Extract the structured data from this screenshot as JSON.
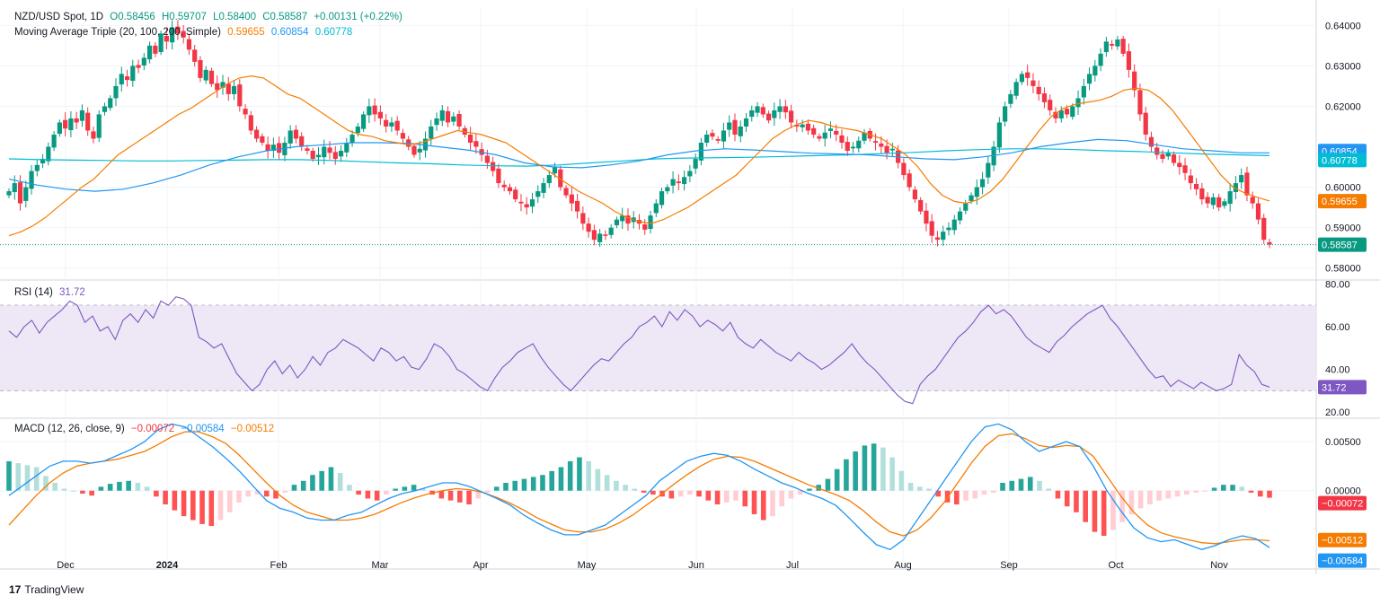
{
  "legend": {
    "symbol": "NZD/USD Spot, 1D",
    "open": "O0.58456",
    "high": "H0.59707",
    "low": "L0.58400",
    "close": "C0.58587",
    "change": "+0.00131 (+0.22%)",
    "ma_label": "Moving Average Triple (20, 100, 200, Simple)",
    "ma20": "0.59655",
    "ma100": "0.60854",
    "ma200": "0.60778",
    "rsi_label": "RSI (14)",
    "rsi_value": "31.72",
    "macd_label": "MACD (12, 26, close, 9)",
    "macd_hist": "−0.00072",
    "macd_line": "−0.00584",
    "macd_signal": "−0.00512"
  },
  "brand": {
    "logo": "17",
    "name": "TradingView"
  },
  "colors": {
    "up": "#089981",
    "down": "#f23645",
    "ma20": "#f57c00",
    "ma100": "#2196f3",
    "ma200": "#00bcd4",
    "rsi": "#7e57c2",
    "macd": "#2196f3",
    "signal": "#f57c00",
    "hist_up_strong": "#26a69a",
    "hist_up_weak": "#b2dfdb",
    "hist_down_strong": "#ff5252",
    "hist_down_weak": "#ffcdd2",
    "rsi_band": "#ede7f6"
  },
  "chart_data": [
    {
      "type": "candlestick",
      "title": "NZD/USD Spot, 1D",
      "ylim": [
        0.5775,
        0.6445
      ],
      "y_ticks": [
        "0.64000",
        "0.63000",
        "0.62000",
        "0.60000",
        "0.59000",
        "0.58000"
      ],
      "x_ticks": [
        "Dec",
        "2024",
        "Feb",
        "Mar",
        "Apr",
        "May",
        "Jun",
        "Jul",
        "Aug",
        "Sep",
        "Oct",
        "Nov"
      ],
      "last_close_label": "0.58587",
      "close_path": [
        0.599,
        0.601,
        0.596,
        0.6,
        0.604,
        0.6055,
        0.607,
        0.61,
        0.613,
        0.616,
        0.6145,
        0.617,
        0.616,
        0.619,
        0.614,
        0.612,
        0.618,
        0.62,
        0.622,
        0.625,
        0.628,
        0.6265,
        0.63,
        0.6295,
        0.632,
        0.635,
        0.633,
        0.638,
        0.636,
        0.6395,
        0.638,
        0.637,
        0.634,
        0.631,
        0.627,
        0.629,
        0.6255,
        0.624,
        0.626,
        0.623,
        0.625,
        0.62,
        0.618,
        0.614,
        0.612,
        0.611,
        0.609,
        0.6105,
        0.6085,
        0.611,
        0.614,
        0.612,
        0.61,
        0.609,
        0.607,
        0.608,
        0.61,
        0.6085,
        0.607,
        0.609,
        0.611,
        0.613,
        0.615,
        0.618,
        0.62,
        0.618,
        0.617,
        0.615,
        0.616,
        0.614,
        0.612,
        0.61,
        0.608,
        0.6095,
        0.612,
        0.615,
        0.617,
        0.619,
        0.616,
        0.6175,
        0.615,
        0.613,
        0.611,
        0.61,
        0.608,
        0.606,
        0.604,
        0.601,
        0.6,
        0.599,
        0.597,
        0.596,
        0.595,
        0.597,
        0.599,
        0.601,
        0.603,
        0.605,
        0.6,
        0.598,
        0.596,
        0.594,
        0.591,
        0.589,
        0.587,
        0.5885,
        0.588,
        0.59,
        0.592,
        0.593,
        0.591,
        0.5925,
        0.591,
        0.5895,
        0.593,
        0.596,
        0.599,
        0.6,
        0.602,
        0.601,
        0.6025,
        0.604,
        0.607,
        0.611,
        0.613,
        0.6125,
        0.6115,
        0.614,
        0.616,
        0.613,
        0.615,
        0.617,
        0.619,
        0.62,
        0.618,
        0.6165,
        0.619,
        0.62,
        0.6185,
        0.616,
        0.615,
        0.6155,
        0.614,
        0.613,
        0.612,
        0.6135,
        0.6145,
        0.613,
        0.611,
        0.609,
        0.61,
        0.6115,
        0.6135,
        0.612,
        0.611,
        0.61,
        0.6085,
        0.6095,
        0.606,
        0.603,
        0.6,
        0.597,
        0.594,
        0.591,
        0.588,
        0.587,
        0.589,
        0.59,
        0.592,
        0.594,
        0.596,
        0.598,
        0.6,
        0.602,
        0.606,
        0.61,
        0.616,
        0.62,
        0.623,
        0.626,
        0.628,
        0.627,
        0.625,
        0.623,
        0.621,
        0.619,
        0.617,
        0.619,
        0.618,
        0.62,
        0.622,
        0.625,
        0.628,
        0.63,
        0.633,
        0.636,
        0.635,
        0.6365,
        0.633,
        0.629,
        0.624,
        0.618,
        0.613,
        0.61,
        0.608,
        0.607,
        0.6085,
        0.606,
        0.605,
        0.6035,
        0.601,
        0.5995,
        0.597,
        0.596,
        0.5975,
        0.595,
        0.5965,
        0.599,
        0.601,
        0.603,
        0.598,
        0.596,
        0.592,
        0.587,
        0.5858
      ],
      "ma20_path": [
        0.588,
        0.589,
        0.5905,
        0.5925,
        0.595,
        0.5975,
        0.6,
        0.602,
        0.605,
        0.608,
        0.61,
        0.612,
        0.614,
        0.616,
        0.618,
        0.6195,
        0.6215,
        0.6235,
        0.6255,
        0.627,
        0.6275,
        0.627,
        0.625,
        0.623,
        0.622,
        0.62,
        0.618,
        0.616,
        0.614,
        0.613,
        0.6125,
        0.6115,
        0.611,
        0.6105,
        0.611,
        0.612,
        0.613,
        0.614,
        0.6135,
        0.613,
        0.612,
        0.611,
        0.609,
        0.607,
        0.605,
        0.603,
        0.601,
        0.599,
        0.5975,
        0.596,
        0.594,
        0.5925,
        0.5915,
        0.591,
        0.592,
        0.5935,
        0.595,
        0.597,
        0.599,
        0.601,
        0.603,
        0.606,
        0.609,
        0.612,
        0.614,
        0.6155,
        0.6165,
        0.616,
        0.615,
        0.6145,
        0.614,
        0.613,
        0.612,
        0.61,
        0.608,
        0.605,
        0.601,
        0.598,
        0.5965,
        0.596,
        0.597,
        0.599,
        0.602,
        0.606,
        0.61,
        0.614,
        0.6175,
        0.6195,
        0.6205,
        0.621,
        0.6215,
        0.6225,
        0.624,
        0.6245,
        0.624,
        0.622,
        0.619,
        0.615,
        0.611,
        0.607,
        0.603,
        0.6,
        0.5985,
        0.5975,
        0.5966
      ],
      "ma100_path": [
        0.602,
        0.6005,
        0.5995,
        0.599,
        0.5995,
        0.601,
        0.603,
        0.6055,
        0.6075,
        0.609,
        0.61,
        0.6105,
        0.611,
        0.611,
        0.6108,
        0.61,
        0.6092,
        0.608,
        0.606,
        0.605,
        0.6048,
        0.6055,
        0.6065,
        0.608,
        0.609,
        0.6095,
        0.6092,
        0.6088,
        0.6084,
        0.6082,
        0.608,
        0.6075,
        0.607,
        0.6068,
        0.6075,
        0.6085,
        0.61,
        0.611,
        0.6118,
        0.6115,
        0.6105,
        0.6095,
        0.609,
        0.6085,
        0.6085
      ],
      "ma200_path": [
        0.607,
        0.6068,
        0.6067,
        0.6066,
        0.6065,
        0.6065,
        0.6066,
        0.6067,
        0.6068,
        0.6068,
        0.6066,
        0.6063,
        0.606,
        0.6058,
        0.6055,
        0.6053,
        0.6052,
        0.6055,
        0.606,
        0.6065,
        0.607,
        0.6072,
        0.6073,
        0.6074,
        0.6076,
        0.6078,
        0.608,
        0.6083,
        0.6086,
        0.609,
        0.6093,
        0.6095,
        0.6095,
        0.6093,
        0.609,
        0.6088,
        0.6085,
        0.6082,
        0.608,
        0.6078
      ]
    },
    {
      "type": "line",
      "title": "RSI (14)",
      "ylim": [
        18,
        81
      ],
      "y_ticks": [
        "80.00",
        "60.00",
        "40.00",
        "20.00"
      ],
      "bands": [
        70,
        50,
        30
      ],
      "last_value_label": "31.72",
      "values": [
        58,
        55,
        60,
        63,
        57,
        62,
        65,
        68,
        72,
        70,
        62,
        65,
        58,
        60,
        54,
        63,
        66,
        62,
        68,
        64,
        72,
        70,
        74,
        73,
        70,
        55,
        53,
        50,
        52,
        45,
        38,
        34,
        30,
        33,
        40,
        44,
        38,
        42,
        36,
        40,
        46,
        42,
        48,
        50,
        54,
        52,
        50,
        47,
        44,
        50,
        48,
        44,
        46,
        41,
        40,
        45,
        52,
        50,
        46,
        40,
        38,
        35,
        32,
        30,
        36,
        41,
        44,
        48,
        50,
        52,
        46,
        41,
        37,
        33,
        30,
        34,
        38,
        42,
        45,
        44,
        48,
        52,
        55,
        60,
        62,
        65,
        60,
        67,
        63,
        68,
        65,
        60,
        63,
        61,
        58,
        62,
        55,
        52,
        50,
        54,
        51,
        48,
        46,
        44,
        48,
        45,
        43,
        40,
        42,
        45,
        48,
        52,
        47,
        43,
        40,
        36,
        32,
        28,
        25,
        24,
        33,
        37,
        40,
        45,
        50,
        55,
        58,
        62,
        67,
        70,
        66,
        68,
        65,
        60,
        55,
        52,
        50,
        48,
        53,
        56,
        60,
        63,
        66,
        68,
        70,
        64,
        60,
        55,
        50,
        45,
        40,
        36,
        37,
        32,
        35,
        33,
        31,
        34,
        32,
        30,
        31,
        33,
        47,
        42,
        39,
        33,
        31.72
      ]
    },
    {
      "type": "bar+line",
      "title": "MACD (12, 26, close, 9)",
      "ylim": [
        -0.0078,
        0.0072
      ],
      "y_ticks": [
        "0.00500",
        "0.00000"
      ],
      "last_labels": {
        "hist": "−0.00072",
        "signal": "−0.00512",
        "macd": "−0.00584"
      },
      "macd": [
        -0.0005,
        0.0005,
        0.0015,
        0.0025,
        0.003,
        0.003,
        0.0028,
        0.003,
        0.0036,
        0.0042,
        0.005,
        0.0062,
        0.0068,
        0.0065,
        0.0055,
        0.0045,
        0.0033,
        0.002,
        0.0005,
        -0.001,
        -0.0018,
        -0.0022,
        -0.0028,
        -0.003,
        -0.003,
        -0.0025,
        -0.0022,
        -0.0015,
        -0.0008,
        -0.0003,
        0.0,
        0.0004,
        0.0008,
        0.0008,
        0.0004,
        -0.0002,
        -0.0008,
        -0.0015,
        -0.0025,
        -0.0033,
        -0.004,
        -0.0045,
        -0.0045,
        -0.004,
        -0.0035,
        -0.0025,
        -0.0015,
        -0.0005,
        0.001,
        0.002,
        0.003,
        0.0035,
        0.0038,
        0.0036,
        0.003,
        0.0022,
        0.0015,
        0.0008,
        0.0003,
        -0.0003,
        -0.0008,
        -0.0015,
        -0.0028,
        -0.0042,
        -0.0055,
        -0.006,
        -0.005,
        -0.003,
        -0.001,
        0.001,
        0.003,
        0.005,
        0.0065,
        0.0068,
        0.0062,
        0.005,
        0.004,
        0.0045,
        0.005,
        0.0045,
        0.0025,
        0.0,
        -0.002,
        -0.0038,
        -0.0048,
        -0.0052,
        -0.005,
        -0.0055,
        -0.006,
        -0.0056,
        -0.005,
        -0.0046,
        -0.0049,
        -0.0058
      ],
      "signal": [
        -0.0035,
        -0.002,
        -0.0005,
        0.0008,
        0.0018,
        0.0025,
        0.0028,
        0.003,
        0.0032,
        0.0036,
        0.004,
        0.0047,
        0.0055,
        0.006,
        0.006,
        0.0055,
        0.0048,
        0.0036,
        0.0022,
        0.0008,
        -0.0005,
        -0.0015,
        -0.0022,
        -0.0026,
        -0.003,
        -0.003,
        -0.0028,
        -0.0024,
        -0.0018,
        -0.0012,
        -0.0007,
        -0.0003,
        0.0,
        0.0002,
        0.0001,
        -0.0002,
        -0.0007,
        -0.0013,
        -0.002,
        -0.0028,
        -0.0034,
        -0.004,
        -0.0042,
        -0.0042,
        -0.0039,
        -0.0033,
        -0.0025,
        -0.0015,
        -0.0005,
        0.0006,
        0.0016,
        0.0025,
        0.0032,
        0.0035,
        0.0034,
        0.003,
        0.0024,
        0.0018,
        0.0012,
        0.0006,
        0.0001,
        -0.0004,
        -0.001,
        -0.002,
        -0.0032,
        -0.0042,
        -0.0046,
        -0.004,
        -0.0028,
        -0.0012,
        0.0008,
        0.0028,
        0.0045,
        0.0056,
        0.0058,
        0.0053,
        0.0046,
        0.0044,
        0.0046,
        0.0045,
        0.0035,
        0.0015,
        -0.0005,
        -0.0022,
        -0.0035,
        -0.0043,
        -0.0047,
        -0.005,
        -0.0053,
        -0.0054,
        -0.0052,
        -0.005,
        -0.005,
        -0.0051
      ],
      "hist": [
        0.003,
        0.0028,
        0.0026,
        0.0024,
        0.0015,
        0.0008,
        0.0002,
        0.0,
        -0.0003,
        -0.0005,
        0.0004,
        0.0007,
        0.0009,
        0.001,
        0.0008,
        0.0004,
        -0.0006,
        -0.0014,
        -0.002,
        -0.0026,
        -0.003,
        -0.0034,
        -0.0036,
        -0.003,
        -0.0022,
        -0.0012,
        -0.0006,
        -0.0004,
        -0.0006,
        -0.0008,
        -0.0002,
        0.0006,
        0.001,
        0.0016,
        0.002,
        0.0024,
        0.0018,
        0.0006,
        -0.0004,
        -0.0008,
        -0.001,
        -0.0004,
        0.0002,
        0.0004,
        0.0006,
        0.0002,
        -0.0004,
        -0.0008,
        -0.001,
        -0.0012,
        -0.0014,
        -0.0008,
        -0.0002,
        0.0004,
        0.0008,
        0.001,
        0.0012,
        0.0014,
        0.0016,
        0.002,
        0.0024,
        0.003,
        0.0034,
        0.003,
        0.0022,
        0.0016,
        0.001,
        0.0006,
        0.0002,
        -0.0002,
        -0.0004,
        -0.0006,
        -0.0008,
        -0.0006,
        -0.0004,
        -0.0006,
        -0.001,
        -0.0014,
        -0.0012,
        -0.001,
        -0.0016,
        -0.0024,
        -0.003,
        -0.0026,
        -0.0016,
        -0.0008,
        -0.0004,
        0.0002,
        0.0006,
        0.0012,
        0.0022,
        0.0032,
        0.004,
        0.0046,
        0.0048,
        0.0044,
        0.0034,
        0.002,
        0.0008,
        0.0004,
        0.0002,
        -0.0006,
        -0.0012,
        -0.0014,
        -0.001,
        -0.0008,
        -0.0004,
        -0.0002,
        0.0008,
        0.001,
        0.0012,
        0.0014,
        0.001,
        0.0002,
        -0.0008,
        -0.0016,
        -0.0022,
        -0.0032,
        -0.0042,
        -0.0046,
        -0.004,
        -0.0032,
        -0.0024,
        -0.0018,
        -0.0014,
        -0.001,
        -0.0008,
        -0.0006,
        -0.0004,
        -0.0002,
        -0.0001,
        0.0003,
        0.0006,
        0.0006,
        0.0004,
        -0.0002,
        -0.0006,
        -0.00072
      ]
    }
  ]
}
